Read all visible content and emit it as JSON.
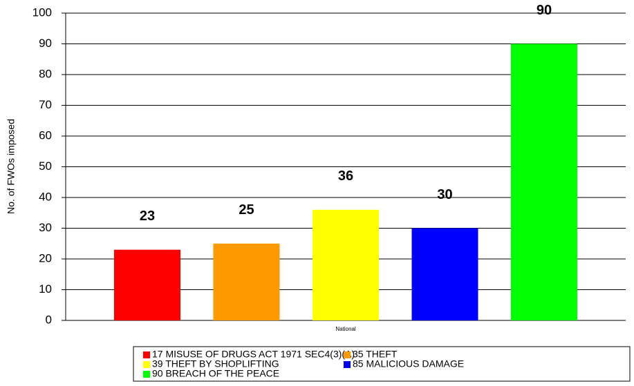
{
  "chart_data": {
    "type": "bar",
    "y_label": "No. of FWOs imposed",
    "categories": [
      "National"
    ],
    "series": [
      {
        "name": "17 MISUSE OF DRUGS ACT 1971 SEC4(3)(A)",
        "color": "#ff0000",
        "values": [
          23
        ]
      },
      {
        "name": "35 THEFT",
        "color": "#ff9900",
        "values": [
          25
        ]
      },
      {
        "name": "39 THEFT BY SHOPLIFTING",
        "color": "#ffff00",
        "values": [
          36
        ]
      },
      {
        "name": "85 MALICIOUS DAMAGE",
        "color": "#0000ff",
        "values": [
          30
        ]
      },
      {
        "name": "90 BREACH OF THE PEACE",
        "color": "#00ff00",
        "values": [
          90
        ]
      }
    ],
    "ylim": [
      0,
      100
    ],
    "yticks": [
      0,
      10,
      20,
      30,
      40,
      50,
      60,
      70,
      80,
      90,
      100
    ],
    "grid": true,
    "legend": "bottom"
  }
}
